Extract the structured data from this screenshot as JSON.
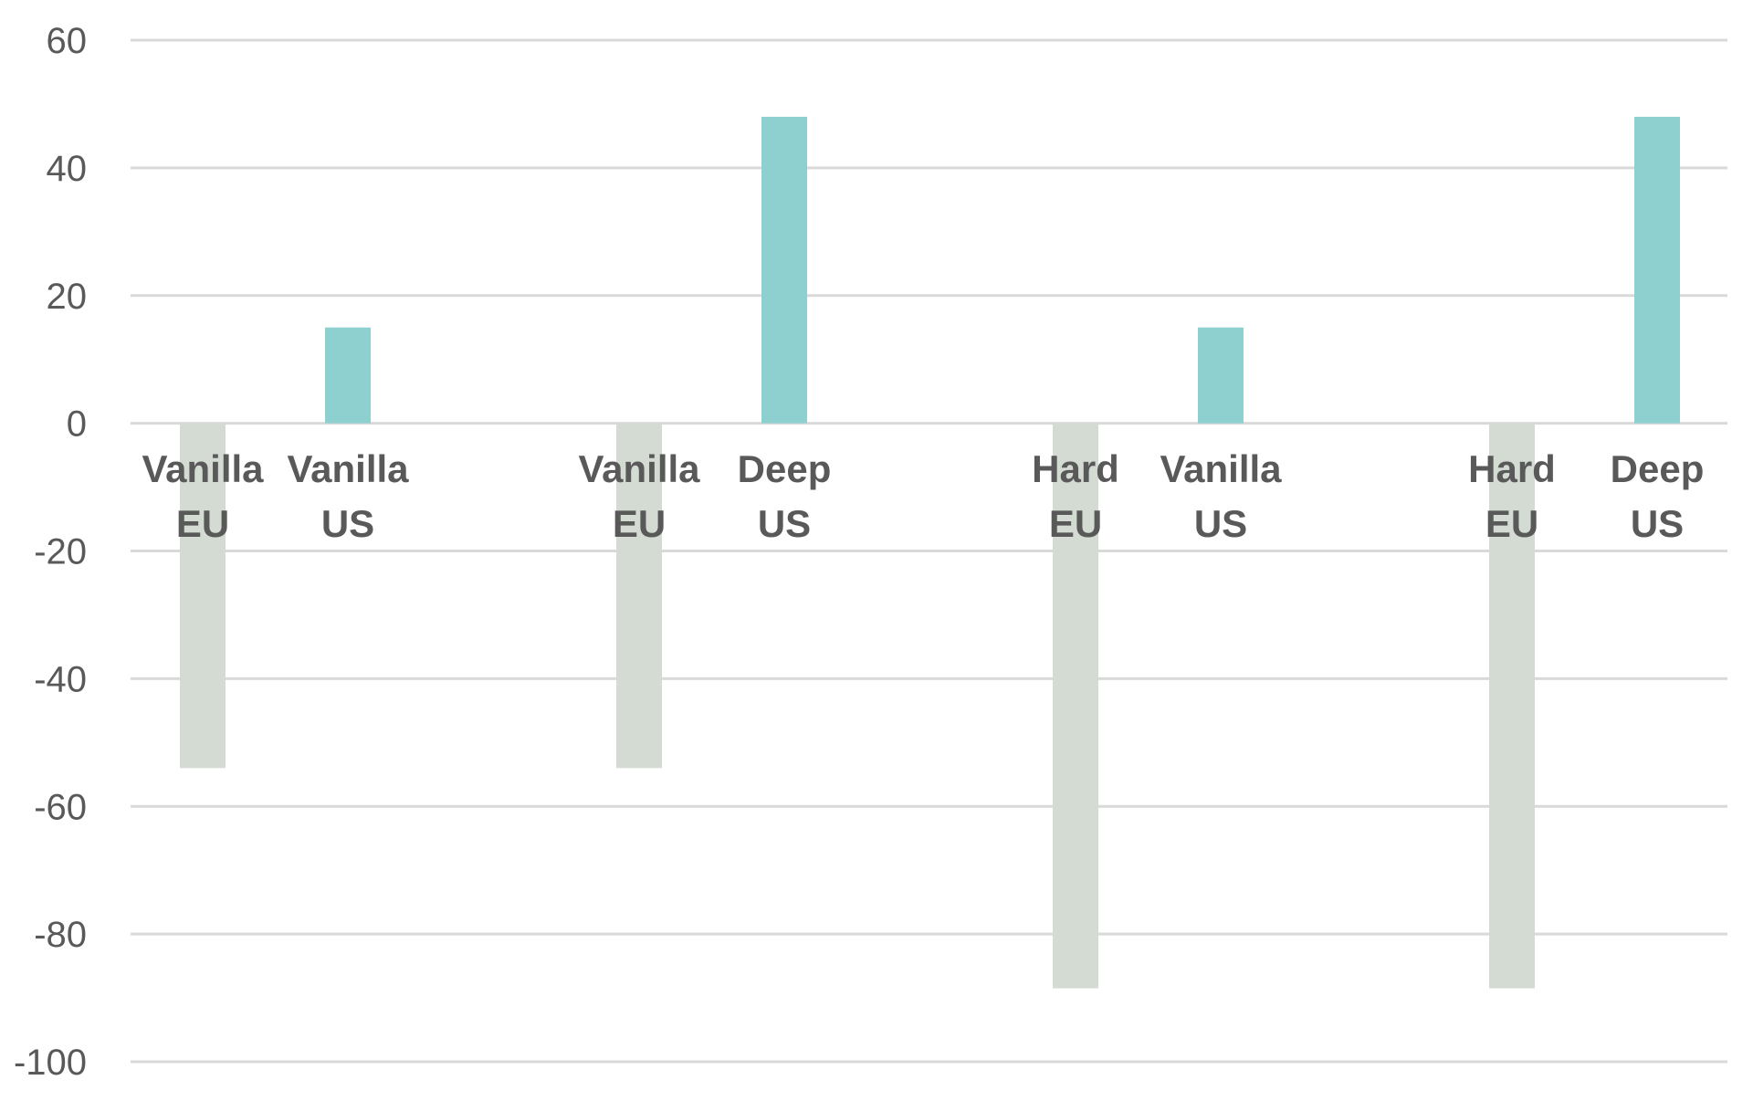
{
  "chart_data": {
    "type": "bar",
    "title": "",
    "xlabel": "",
    "ylabel": "",
    "ylim": [
      -100,
      60
    ],
    "yticks": [
      60,
      40,
      20,
      0,
      -20,
      -40,
      -60,
      -80,
      -100
    ],
    "grid": true,
    "legend": "none",
    "groups": [
      {
        "bars": [
          {
            "label": [
              "Vanilla",
              "EU"
            ],
            "value": -54,
            "color": "#d3dbd3"
          },
          {
            "label": [
              "Vanilla",
              "US"
            ],
            "value": 15,
            "color": "#8ed0d0"
          }
        ]
      },
      {
        "bars": [
          {
            "label": [
              "Vanilla",
              "EU"
            ],
            "value": -54,
            "color": "#d3dbd3"
          },
          {
            "label": [
              "Deep",
              "US"
            ],
            "value": 48,
            "color": "#8ed0d0"
          }
        ]
      },
      {
        "bars": [
          {
            "label": [
              "Hard",
              "EU"
            ],
            "value": -88.5,
            "color": "#d3dbd3"
          },
          {
            "label": [
              "Vanilla",
              "US"
            ],
            "value": 15,
            "color": "#8ed0d0"
          }
        ]
      },
      {
        "bars": [
          {
            "label": [
              "Hard",
              "EU"
            ],
            "value": -88.5,
            "color": "#d3dbd3"
          },
          {
            "label": [
              "Deep",
              "US"
            ],
            "value": 48,
            "color": "#8ed0d0"
          }
        ]
      }
    ]
  }
}
